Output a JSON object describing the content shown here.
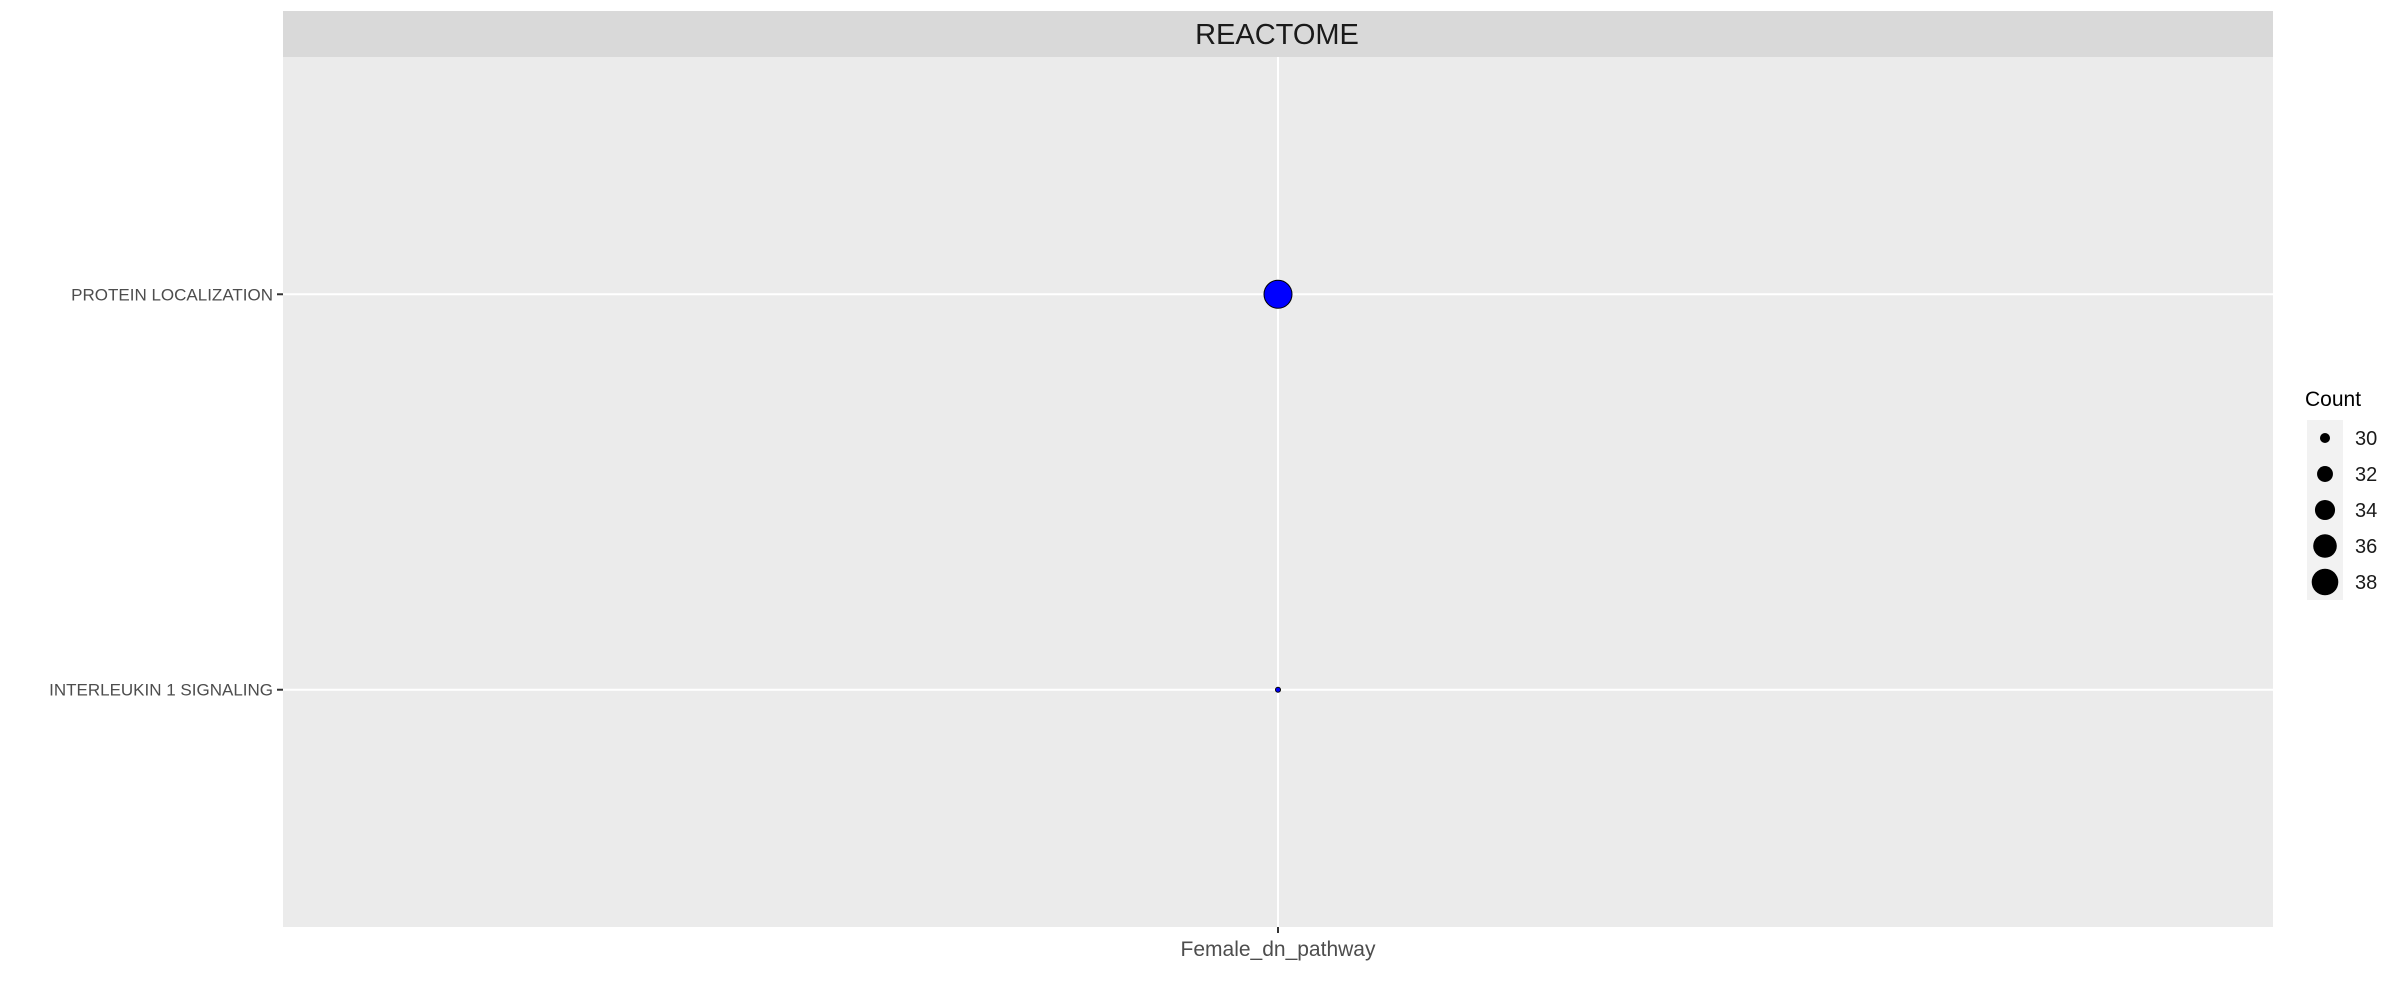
{
  "chart_data": {
    "type": "scatter",
    "title": "",
    "facet_label": "REACTOME",
    "x_categories": [
      "Female_dn_pathway"
    ],
    "y_categories": [
      "INTERLEUKIN 1 SIGNALING",
      "PROTEIN LOCALIZATION"
    ],
    "xlabel": "",
    "ylabel": "",
    "points": [
      {
        "x": "Female_dn_pathway",
        "y": "PROTEIN LOCALIZATION",
        "count": 39
      },
      {
        "x": "Female_dn_pathway",
        "y": "INTERLEUKIN 1 SIGNALING",
        "count": 29
      }
    ],
    "point_color": "#0000ff",
    "legend": {
      "title": "Count",
      "position": "right",
      "values": [
        "30",
        "32",
        "34",
        "36",
        "38"
      ]
    },
    "grid": true
  },
  "colors": {
    "panel_background": "#ebebeb",
    "strip_background": "#d9d9d9",
    "grid_line": "#ffffff",
    "axis_text": "#4d4d4d",
    "point_fill": "#0000ff"
  }
}
